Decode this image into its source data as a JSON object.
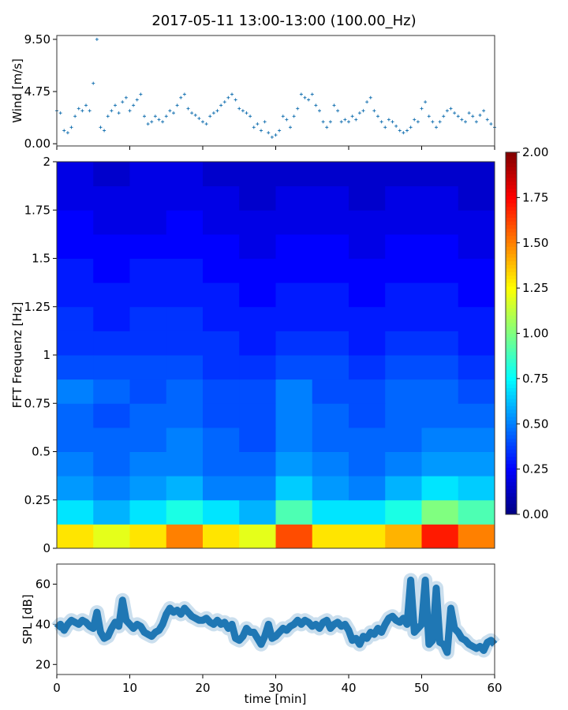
{
  "title": "2017-05-11 13:00-13:00 (100.00_Hz)",
  "chart_data": [
    {
      "type": "scatter",
      "ylabel": "Wind [m/s]",
      "xlim": [
        0,
        60
      ],
      "ylim": [
        -0.2,
        9.85
      ],
      "yticks": [
        "0.00",
        "4.75",
        "9.50"
      ],
      "yticks_values": [
        0,
        4.75,
        9.5
      ],
      "xticks_values": [
        0,
        10,
        20,
        30,
        40,
        50,
        60
      ],
      "marker": "+",
      "color": "#1f77b4",
      "x_step_min": 0.5,
      "values": [
        3.0,
        2.8,
        1.2,
        1.0,
        1.5,
        2.5,
        3.2,
        3.0,
        3.5,
        3.0,
        5.5,
        9.5,
        1.5,
        1.2,
        2.5,
        3.0,
        3.5,
        2.8,
        3.8,
        4.2,
        3.0,
        3.5,
        4.0,
        4.5,
        2.5,
        1.8,
        2.0,
        2.5,
        2.2,
        2.0,
        2.5,
        3.0,
        2.8,
        3.5,
        4.2,
        4.5,
        3.2,
        2.8,
        2.6,
        2.3,
        2.0,
        1.8,
        2.5,
        2.8,
        3.0,
        3.5,
        3.8,
        4.2,
        4.5,
        4.0,
        3.2,
        3.0,
        2.8,
        2.5,
        1.5,
        1.8,
        1.2,
        2.0,
        1.0,
        0.6,
        0.8,
        1.2,
        2.5,
        2.2,
        1.5,
        2.5,
        3.2,
        4.5,
        4.2,
        4.0,
        4.5,
        3.5,
        3.0,
        2.0,
        1.5,
        2.0,
        3.5,
        3.0,
        2.0,
        2.2,
        2.0,
        2.5,
        2.2,
        2.8,
        3.0,
        3.8,
        4.2,
        3.0,
        2.5,
        2.0,
        1.5,
        2.2,
        2.0,
        1.6,
        1.2,
        1.0,
        1.2,
        1.5,
        2.2,
        2.0,
        3.2,
        3.8,
        2.5,
        2.0,
        1.5,
        2.0,
        2.5,
        3.0,
        3.2,
        2.8,
        2.5,
        2.2,
        2.0,
        2.8,
        2.5,
        2.0,
        2.6,
        3.0,
        2.2,
        1.8,
        1.5
      ]
    },
    {
      "type": "heatmap",
      "ylabel": "FFT Frequenz [Hz]",
      "xlim": [
        0,
        60
      ],
      "ylim": [
        0,
        2
      ],
      "yticks": [
        "0",
        "0.25",
        "0.5",
        "0.75",
        "1",
        "1.25",
        "1.5",
        "1.75",
        "2"
      ],
      "yticks_values": [
        0,
        0.25,
        0.5,
        0.75,
        1,
        1.25,
        1.5,
        1.75,
        2
      ],
      "colormap": "jet",
      "clim": [
        0,
        2
      ],
      "colorbar_ticks": [
        "0.00",
        "0.25",
        "0.50",
        "0.75",
        "1.00",
        "1.25",
        "1.50",
        "1.75",
        "2.00"
      ],
      "time_bin_min": 5,
      "freq_bin_hz": 0.125,
      "matrix": [
        [
          1.3,
          1.2,
          1.3,
          1.5,
          1.3,
          1.2,
          1.6,
          1.3,
          1.3,
          1.4,
          1.7,
          1.5
        ],
        [
          0.7,
          0.6,
          0.7,
          0.8,
          0.7,
          0.6,
          0.9,
          0.7,
          0.7,
          0.8,
          1.0,
          0.9
        ],
        [
          0.55,
          0.5,
          0.55,
          0.6,
          0.5,
          0.5,
          0.65,
          0.55,
          0.5,
          0.6,
          0.7,
          0.65
        ],
        [
          0.5,
          0.45,
          0.5,
          0.5,
          0.45,
          0.45,
          0.55,
          0.5,
          0.45,
          0.5,
          0.55,
          0.55
        ],
        [
          0.45,
          0.45,
          0.45,
          0.5,
          0.45,
          0.4,
          0.5,
          0.45,
          0.45,
          0.45,
          0.5,
          0.5
        ],
        [
          0.45,
          0.4,
          0.45,
          0.45,
          0.4,
          0.4,
          0.5,
          0.45,
          0.4,
          0.45,
          0.45,
          0.45
        ],
        [
          0.5,
          0.45,
          0.4,
          0.45,
          0.4,
          0.4,
          0.5,
          0.4,
          0.4,
          0.45,
          0.45,
          0.4
        ],
        [
          0.4,
          0.4,
          0.4,
          0.4,
          0.35,
          0.35,
          0.4,
          0.4,
          0.35,
          0.4,
          0.4,
          0.35
        ],
        [
          0.35,
          0.35,
          0.35,
          0.35,
          0.35,
          0.3,
          0.35,
          0.35,
          0.3,
          0.35,
          0.35,
          0.3
        ],
        [
          0.35,
          0.3,
          0.35,
          0.35,
          0.3,
          0.3,
          0.3,
          0.3,
          0.3,
          0.3,
          0.3,
          0.3
        ],
        [
          0.3,
          0.3,
          0.3,
          0.3,
          0.3,
          0.25,
          0.3,
          0.3,
          0.25,
          0.3,
          0.3,
          0.25
        ],
        [
          0.3,
          0.25,
          0.3,
          0.3,
          0.25,
          0.25,
          0.25,
          0.25,
          0.25,
          0.25,
          0.25,
          0.25
        ],
        [
          0.25,
          0.25,
          0.25,
          0.25,
          0.25,
          0.2,
          0.25,
          0.25,
          0.2,
          0.25,
          0.25,
          0.2
        ],
        [
          0.25,
          0.2,
          0.2,
          0.25,
          0.2,
          0.2,
          0.2,
          0.2,
          0.2,
          0.2,
          0.2,
          0.2
        ],
        [
          0.2,
          0.2,
          0.2,
          0.2,
          0.2,
          0.15,
          0.2,
          0.2,
          0.15,
          0.2,
          0.2,
          0.15
        ],
        [
          0.2,
          0.15,
          0.2,
          0.2,
          0.15,
          0.15,
          0.15,
          0.15,
          0.15,
          0.15,
          0.15,
          0.15
        ]
      ]
    },
    {
      "type": "line",
      "xlabel": "time [min]",
      "ylabel": "SPL [dB]",
      "xlim": [
        0,
        60
      ],
      "ylim": [
        15,
        70
      ],
      "xticks": [
        "0",
        "10",
        "20",
        "30",
        "40",
        "50",
        "60"
      ],
      "xticks_values": [
        0,
        10,
        20,
        30,
        40,
        50,
        60
      ],
      "yticks": [
        "20",
        "40",
        "60"
      ],
      "yticks_values": [
        20,
        40,
        60
      ],
      "color": "#1f77b4",
      "x_step_min": 0.5,
      "values": [
        38,
        40,
        37,
        40,
        42,
        41,
        40,
        42,
        41,
        39,
        38,
        46,
        36,
        33,
        34,
        38,
        41,
        39,
        52,
        42,
        40,
        38,
        40,
        39,
        36,
        35,
        34,
        36,
        37,
        40,
        45,
        48,
        46,
        47,
        45,
        48,
        46,
        44,
        43,
        42,
        42,
        43,
        41,
        40,
        42,
        40,
        41,
        38,
        40,
        33,
        32,
        34,
        38,
        36,
        36,
        33,
        30,
        34,
        40,
        33,
        34,
        36,
        38,
        37,
        39,
        40,
        42,
        40,
        42,
        41,
        39,
        40,
        38,
        41,
        42,
        38,
        40,
        41,
        39,
        40,
        37,
        32,
        33,
        30,
        34,
        33,
        36,
        35,
        38,
        36,
        40,
        43,
        44,
        42,
        41,
        43,
        40,
        62,
        36,
        38,
        40,
        62,
        30,
        32,
        58,
        31,
        30,
        26,
        48,
        38,
        36,
        33,
        32,
        30,
        29,
        28,
        29,
        27,
        31,
        32,
        30
      ]
    }
  ]
}
